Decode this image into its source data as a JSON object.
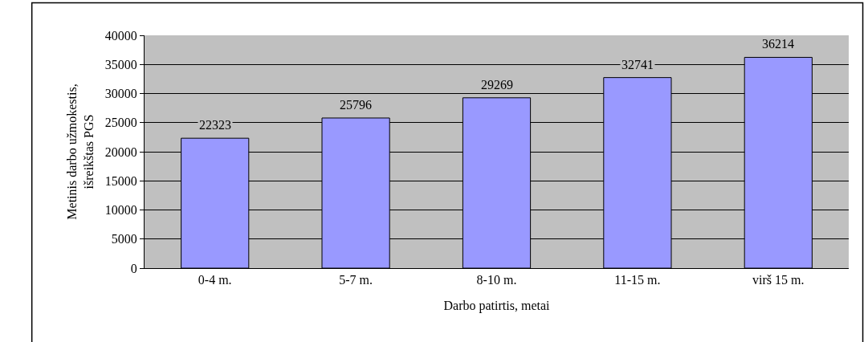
{
  "chart_data": {
    "type": "bar",
    "categories": [
      "0-4 m.",
      "5-7 m.",
      "8-10 m.",
      "11-15 m.",
      "virš 15 m."
    ],
    "values": [
      22323,
      25796,
      29269,
      32741,
      36214
    ],
    "color": "#9999ff",
    "xlabel": "Darbo patirtis, metai",
    "ylabel": "Metinis darbo užmokestis, išreikštas PGS",
    "ylim": [
      0,
      40000
    ],
    "yticks": [
      0,
      5000,
      10000,
      15000,
      20000,
      25000,
      30000,
      35000,
      40000
    ],
    "grid": "y",
    "data_labels": true
  }
}
